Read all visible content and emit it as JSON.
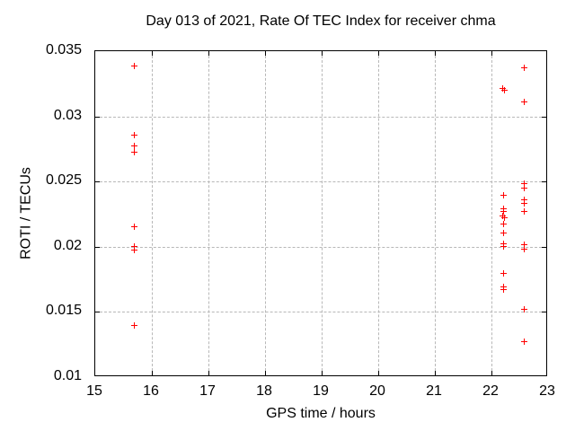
{
  "title": "Day 013 of 2021, Rate Of TEC Index for receiver chma",
  "colors": {
    "marker": "#ff0000",
    "grid": "#b8b8b8",
    "frame": "#000000",
    "background": "#ffffff"
  },
  "chart_data": {
    "type": "scatter",
    "title": "Day 013 of 2021, Rate Of TEC Index for receiver chma",
    "xlabel": "GPS time / hours",
    "ylabel": "ROTI / TECUs",
    "xlim": [
      15,
      23
    ],
    "ylim": [
      0.01,
      0.035
    ],
    "xticks": [
      15,
      16,
      17,
      18,
      19,
      20,
      21,
      22,
      23
    ],
    "xtick_labels": [
      "15",
      "16",
      "17",
      "18",
      "19",
      "20",
      "21",
      "22",
      "23"
    ],
    "yticks": [
      0.01,
      0.015,
      0.02,
      0.025,
      0.03,
      0.035
    ],
    "ytick_labels": [
      "0.01",
      "0.015",
      "0.02",
      "0.025",
      "0.03",
      "0.035"
    ],
    "grid": true,
    "legend": "none",
    "marker": "plus",
    "marker_color": "#ff0000",
    "series": [
      {
        "name": "ROTI",
        "points": [
          [
            15.7,
            0.0338
          ],
          [
            15.7,
            0.0285
          ],
          [
            15.7,
            0.0277
          ],
          [
            15.7,
            0.0272
          ],
          [
            15.7,
            0.0215
          ],
          [
            15.7,
            0.02
          ],
          [
            15.7,
            0.0197
          ],
          [
            15.7,
            0.0139
          ],
          [
            22.21,
            0.0321
          ],
          [
            22.24,
            0.032
          ],
          [
            22.22,
            0.0239
          ],
          [
            22.22,
            0.0229
          ],
          [
            22.22,
            0.0227
          ],
          [
            22.21,
            0.0223
          ],
          [
            22.23,
            0.0222
          ],
          [
            22.22,
            0.0217
          ],
          [
            22.22,
            0.021
          ],
          [
            22.22,
            0.0202
          ],
          [
            22.22,
            0.02
          ],
          [
            22.22,
            0.0179
          ],
          [
            22.22,
            0.0169
          ],
          [
            22.22,
            0.0167
          ],
          [
            22.58,
            0.0337
          ],
          [
            22.58,
            0.0311
          ],
          [
            22.58,
            0.0248
          ],
          [
            22.58,
            0.0245
          ],
          [
            22.58,
            0.0236
          ],
          [
            22.58,
            0.0233
          ],
          [
            22.58,
            0.0227
          ],
          [
            22.58,
            0.0201
          ],
          [
            22.59,
            0.0198
          ],
          [
            22.58,
            0.0152
          ],
          [
            22.58,
            0.0127
          ]
        ]
      }
    ]
  }
}
